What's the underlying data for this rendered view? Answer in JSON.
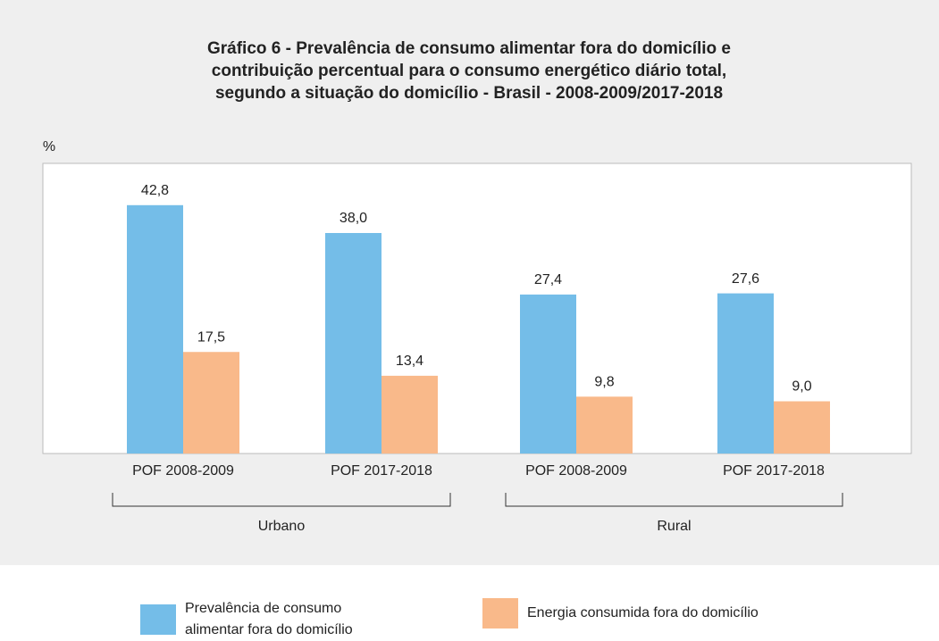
{
  "chart_data": {
    "type": "bar",
    "title": [
      "Gráfico 6 - Prevalência de consumo alimentar fora do domicílio e",
      "contribuição percentual para o consumo energético diário total,",
      "segundo a situação do domicílio - Brasil - 2008-2009/2017-2018"
    ],
    "y_label": "%",
    "categories": [
      "POF 2008-2009",
      "POF 2017-2018",
      "POF 2008-2009",
      "POF 2017-2018"
    ],
    "groups": [
      "Urbano",
      "Rural"
    ],
    "series": [
      {
        "name": "Prevalência de consumo alimentar fora do domicílio",
        "color": "#74bde8",
        "values": [
          42.8,
          38.0,
          27.4,
          27.6
        ],
        "value_labels": [
          "42,8",
          "38,0",
          "27,4",
          "27,6"
        ]
      },
      {
        "name": "Energia consumida fora do domicílio",
        "color": "#f9b98a",
        "values": [
          17.5,
          13.4,
          9.8,
          9.0
        ],
        "value_labels": [
          "17,5",
          "13,4",
          "9,8",
          "9,0"
        ]
      }
    ],
    "ylim": [
      0,
      50
    ]
  }
}
